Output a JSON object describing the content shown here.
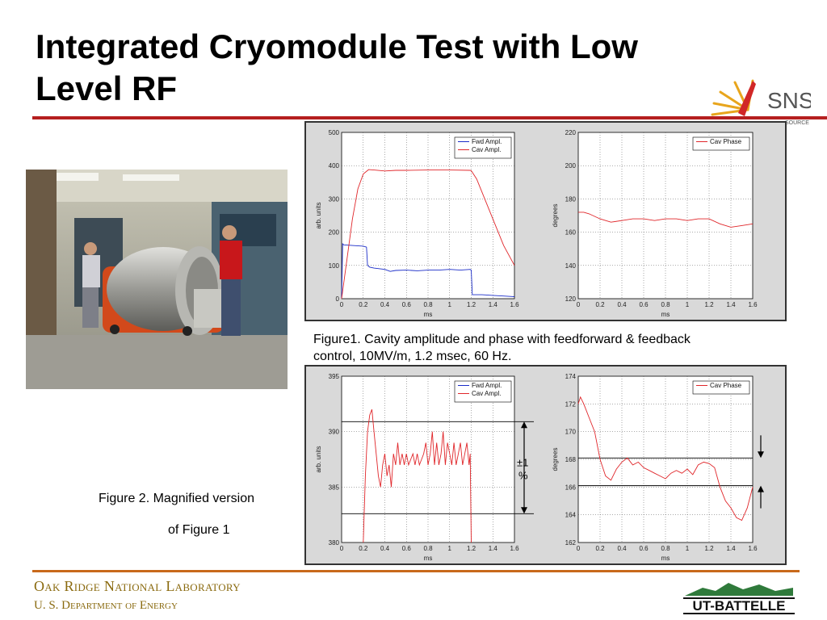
{
  "slide": {
    "title": "Integrated Cryomodule Test with Low Level RF",
    "caption1": "Figure1.  Cavity amplitude and phase with feedforward & feedback control, 10MV/m, 1.2 msec, 60 Hz.",
    "caption2_line1": "Figure 2.  Magnified version",
    "caption2_line2": "of Figure 1",
    "footer_org": "Oak Ridge National Laboratory",
    "footer_doe": "U. S. Department of Energy",
    "sns_logo_text": "SNS",
    "sns_logo_subtext": "SOURCE",
    "ut_logo_text": "UT-BATTELLE",
    "annotation_pct": "±1 %"
  },
  "colors": {
    "red_rule": "#b51f1f",
    "orange_rule": "#c8691b",
    "fwd": "#1a2cc8",
    "cav": "#e0262a",
    "footer": "#8a6a0f"
  },
  "chart_data": [
    {
      "type": "line",
      "id": "fig1-amplitude",
      "xlabel": "ms",
      "ylabel": "arb. units",
      "xlim": [
        0,
        1.6
      ],
      "ylim": [
        0,
        500
      ],
      "x_ticks": [
        "0",
        "0.2",
        "0.4",
        "0.6",
        "0.8",
        "1",
        "1.2",
        "1.4",
        "1.6"
      ],
      "y_ticks": [
        "0",
        "100",
        "200",
        "300",
        "400",
        "500"
      ],
      "grid": true,
      "legend_position": "top-right",
      "series": [
        {
          "name": "Fwd Ampl.",
          "color": "#1a2cc8",
          "x": [
            0,
            0.01,
            0.02,
            0.1,
            0.2,
            0.23,
            0.24,
            0.26,
            0.3,
            0.4,
            0.45,
            0.5,
            0.6,
            0.7,
            0.8,
            0.9,
            1.0,
            1.1,
            1.19,
            1.2,
            1.21,
            1.3,
            1.4,
            1.5,
            1.6
          ],
          "y": [
            0,
            165,
            162,
            160,
            158,
            155,
            100,
            95,
            92,
            88,
            82,
            85,
            86,
            84,
            86,
            86,
            88,
            86,
            88,
            86,
            12,
            12,
            10,
            8,
            6
          ]
        },
        {
          "name": "Cav Ampl.",
          "color": "#e0262a",
          "x": [
            0,
            0.05,
            0.1,
            0.15,
            0.2,
            0.25,
            0.3,
            0.4,
            0.5,
            0.6,
            0.8,
            1.0,
            1.19,
            1.2,
            1.25,
            1.3,
            1.4,
            1.5,
            1.6
          ],
          "y": [
            0,
            120,
            240,
            330,
            375,
            388,
            387,
            384,
            386,
            386,
            387,
            387,
            386,
            385,
            360,
            320,
            240,
            160,
            100
          ]
        }
      ]
    },
    {
      "type": "line",
      "id": "fig1-phase",
      "xlabel": "ms",
      "ylabel": "degrees",
      "xlim": [
        0,
        1.6
      ],
      "ylim": [
        120,
        220
      ],
      "x_ticks": [
        "0",
        "0.2",
        "0.4",
        "0.6",
        "0.8",
        "1",
        "1.2",
        "1.4",
        "1.6"
      ],
      "y_ticks": [
        "120",
        "140",
        "160",
        "180",
        "200",
        "220"
      ],
      "grid": true,
      "legend_position": "top-right",
      "series": [
        {
          "name": "Cav Phase",
          "color": "#e0262a",
          "x": [
            0,
            0.05,
            0.1,
            0.2,
            0.3,
            0.4,
            0.5,
            0.6,
            0.7,
            0.8,
            0.9,
            1.0,
            1.1,
            1.2,
            1.3,
            1.4,
            1.5,
            1.6
          ],
          "y": [
            172,
            172,
            171,
            168,
            166,
            167,
            168,
            168,
            167,
            168,
            168,
            167,
            168,
            168,
            165,
            163,
            164,
            165
          ]
        }
      ]
    },
    {
      "type": "line",
      "id": "fig2-amplitude",
      "xlabel": "ms",
      "ylabel": "arb. units",
      "xlim": [
        0,
        1.6
      ],
      "ylim": [
        380,
        395
      ],
      "x_ticks": [
        "0",
        "0.2",
        "0.4",
        "0.6",
        "0.8",
        "1",
        "1.2",
        "1.4",
        "1.6"
      ],
      "y_ticks": [
        "380",
        "385",
        "390",
        "395"
      ],
      "grid": true,
      "legend_position": "top-right",
      "series": [
        {
          "name": "Fwd Ampl.",
          "color": "#1a2cc8",
          "x": [],
          "y": []
        },
        {
          "name": "Cav Ampl.",
          "color": "#e0262a",
          "x": [
            0.2,
            0.22,
            0.24,
            0.26,
            0.28,
            0.3,
            0.32,
            0.34,
            0.36,
            0.38,
            0.4,
            0.42,
            0.44,
            0.46,
            0.48,
            0.5,
            0.52,
            0.54,
            0.56,
            0.58,
            0.6,
            0.62,
            0.64,
            0.66,
            0.68,
            0.7,
            0.72,
            0.74,
            0.76,
            0.78,
            0.8,
            0.82,
            0.84,
            0.86,
            0.88,
            0.9,
            0.92,
            0.94,
            0.96,
            0.98,
            1.0,
            1.02,
            1.04,
            1.06,
            1.08,
            1.1,
            1.12,
            1.14,
            1.16,
            1.18,
            1.19,
            1.2
          ],
          "y": [
            380,
            386,
            390,
            391.5,
            392,
            390,
            388,
            386,
            385,
            387,
            388,
            386,
            387,
            385,
            388,
            387,
            389,
            387,
            388,
            387,
            388,
            387,
            387.5,
            388,
            387,
            388,
            387,
            387.5,
            388,
            389,
            387,
            388,
            390,
            387,
            389,
            387,
            388,
            390,
            387,
            389,
            388,
            387,
            389,
            387,
            388,
            389,
            387,
            388,
            389,
            387,
            388,
            380
          ]
        }
      ],
      "reference_lines": [
        390.9,
        382.6
      ],
      "annotation": "±1 %"
    },
    {
      "type": "line",
      "id": "fig2-phase",
      "xlabel": "ms",
      "ylabel": "degrees",
      "xlim": [
        0,
        1.6
      ],
      "ylim": [
        162,
        174
      ],
      "x_ticks": [
        "0",
        "0.2",
        "0.4",
        "0.6",
        "0.8",
        "1",
        "1.2",
        "1.4",
        "1.6"
      ],
      "y_ticks": [
        "162",
        "164",
        "166",
        "168",
        "170",
        "172",
        "174"
      ],
      "grid": true,
      "legend_position": "top-right",
      "series": [
        {
          "name": "Cav Phase",
          "color": "#e0262a",
          "x": [
            0,
            0.02,
            0.05,
            0.1,
            0.15,
            0.2,
            0.25,
            0.3,
            0.35,
            0.4,
            0.45,
            0.5,
            0.55,
            0.6,
            0.65,
            0.7,
            0.75,
            0.8,
            0.85,
            0.9,
            0.95,
            1.0,
            1.05,
            1.1,
            1.15,
            1.2,
            1.25,
            1.3,
            1.35,
            1.4,
            1.45,
            1.5,
            1.55,
            1.6
          ],
          "y": [
            172,
            172.5,
            172,
            171,
            170,
            168,
            166.8,
            166.5,
            167.3,
            167.8,
            168.1,
            167.6,
            167.8,
            167.4,
            167.2,
            167,
            166.8,
            166.6,
            167,
            167.2,
            167,
            167.3,
            166.9,
            167.6,
            167.8,
            167.7,
            167.4,
            166,
            165,
            164.5,
            163.8,
            163.6,
            164.5,
            166
          ]
        }
      ],
      "reference_lines": [
        168.1,
        166.1
      ]
    }
  ]
}
